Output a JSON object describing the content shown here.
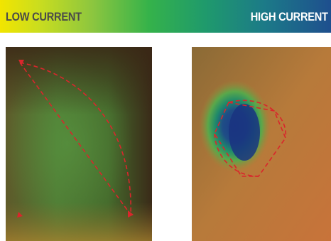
{
  "legend": {
    "low_label": "LOW CURRENT",
    "high_label": "HIGH CURRENT",
    "gradient_colors": [
      "#f2e500",
      "#8cc63f",
      "#35b24a",
      "#1c7a88",
      "#1e4f8e"
    ]
  },
  "images": {
    "left": {
      "icon": "thermal-image-low-current"
    },
    "right": {
      "icon": "thermal-image-high-current"
    }
  },
  "annotation_color": "#d9262c"
}
